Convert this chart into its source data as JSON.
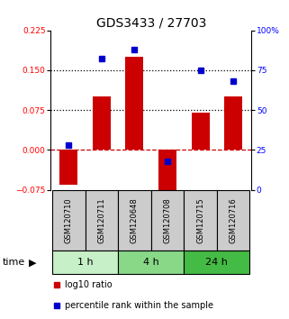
{
  "title": "GDS3433 / 27703",
  "samples": [
    "GSM120710",
    "GSM120711",
    "GSM120648",
    "GSM120708",
    "GSM120715",
    "GSM120716"
  ],
  "log10_ratio": [
    -0.065,
    0.1,
    0.175,
    -0.09,
    0.07,
    0.1
  ],
  "percentile_rank": [
    28,
    82,
    88,
    18,
    75,
    68
  ],
  "ylim_left": [
    -0.075,
    0.225
  ],
  "ylim_right": [
    0,
    100
  ],
  "yticks_left": [
    -0.075,
    0,
    0.075,
    0.15,
    0.225
  ],
  "yticks_right": [
    0,
    25,
    50,
    75,
    100
  ],
  "hlines": [
    0.075,
    0.15
  ],
  "zero_line": 0,
  "groups": [
    {
      "label": "1 h",
      "start": 0,
      "end": 2,
      "color": "#c8f0c8"
    },
    {
      "label": "4 h",
      "start": 2,
      "end": 4,
      "color": "#88d888"
    },
    {
      "label": "24 h",
      "start": 4,
      "end": 6,
      "color": "#44bb44"
    }
  ],
  "bar_color": "#cc0000",
  "square_color": "#0000cc",
  "bar_width": 0.55,
  "title_fontsize": 10,
  "tick_fontsize": 6.5,
  "label_fontsize": 8,
  "group_label_fontsize": 8,
  "legend_fontsize": 7,
  "sample_label_fontsize": 6,
  "zero_color": "#cc0000",
  "sample_box_color": "#cccccc"
}
